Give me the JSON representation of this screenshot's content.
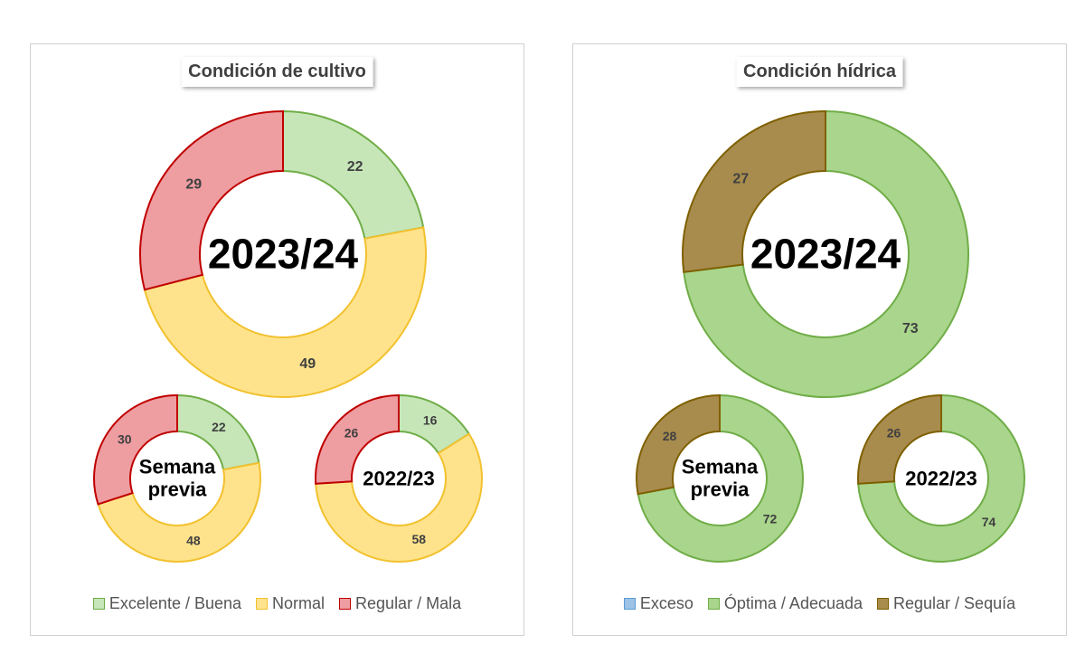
{
  "chart_data": [
    {
      "type": "donut",
      "title": "Condición de cultivo",
      "series": [
        {
          "name": "Excelente / Buena",
          "color": "#c6e6b8",
          "edge": "#70ad47"
        },
        {
          "name": "Normal",
          "color": "#ffe38c",
          "edge": "#f2c12e"
        },
        {
          "name": "Regular / Mala",
          "color": "#ee9da1",
          "edge": "#c00000"
        }
      ],
      "charts": [
        {
          "label": "2023/24",
          "values": [
            22,
            49,
            29
          ]
        },
        {
          "label": "Semana previa",
          "values": [
            22,
            48,
            30
          ]
        },
        {
          "label": "2022/23",
          "values": [
            16,
            58,
            26
          ]
        }
      ]
    },
    {
      "type": "donut",
      "title": "Condición hídrica",
      "series": [
        {
          "name": "Exceso",
          "color": "#9dc3e6",
          "edge": "#5b9bd5"
        },
        {
          "name": "Óptima / Adecuada",
          "color": "#a9d58c",
          "edge": "#70ad47"
        },
        {
          "name": "Regular / Sequía",
          "color": "#a88c4e",
          "edge": "#7f6000"
        }
      ],
      "charts": [
        {
          "label": "2023/24",
          "values": [
            0,
            73,
            27
          ]
        },
        {
          "label": "Semana previa",
          "values": [
            0,
            72,
            28
          ]
        },
        {
          "label": "2022/23",
          "values": [
            0,
            74,
            26
          ]
        }
      ]
    }
  ]
}
